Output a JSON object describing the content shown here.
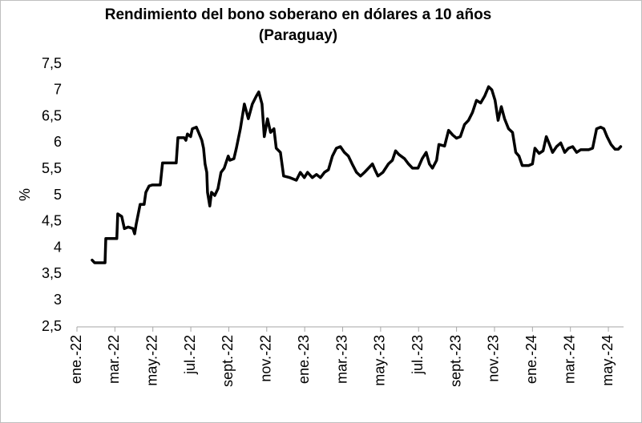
{
  "chart_data": {
    "type": "line",
    "title": "Rendimiento del bono soberano en dólares a 10 años",
    "subtitle": "(Paraguay)",
    "y_label": "%",
    "color": "#000000",
    "grid": false,
    "xlim": [
      0,
      28.8
    ],
    "xticks": [
      {
        "value": 0,
        "label": "ene.-22"
      },
      {
        "value": 2,
        "label": "mar.-22"
      },
      {
        "value": 4,
        "label": "may.-22"
      },
      {
        "value": 6,
        "label": "jul.-22"
      },
      {
        "value": 8,
        "label": "sept.-22"
      },
      {
        "value": 10,
        "label": "nov.-22"
      },
      {
        "value": 12,
        "label": "ene.-23"
      },
      {
        "value": 14,
        "label": "mar.-23"
      },
      {
        "value": 16,
        "label": "may.-23"
      },
      {
        "value": 18,
        "label": "jul.-23"
      },
      {
        "value": 20,
        "label": "sept.-23"
      },
      {
        "value": 22,
        "label": "nov.-23"
      },
      {
        "value": 24,
        "label": "ene.-24"
      },
      {
        "value": 26,
        "label": "mar.-24"
      },
      {
        "value": 28,
        "label": "may.-24"
      }
    ],
    "ylim": [
      2.5,
      7.5
    ],
    "yticks": [
      {
        "value": 2.5,
        "label": "2,5"
      },
      3,
      {
        "value": 3.5,
        "label": "3,5"
      },
      4,
      {
        "value": 4.5,
        "label": "4,5"
      },
      5,
      {
        "value": 5.5,
        "label": "5,5"
      },
      6,
      {
        "value": 6.5,
        "label": "6,5"
      },
      7,
      {
        "value": 7.5,
        "label": "7,5"
      }
    ],
    "x": [
      0.8,
      0.93,
      1.48,
      1.52,
      2.1,
      2.15,
      2.36,
      2.5,
      2.7,
      2.95,
      3.04,
      3.12,
      3.33,
      3.54,
      3.63,
      3.8,
      3.97,
      4.39,
      4.51,
      5.23,
      5.32,
      5.65,
      5.74,
      5.82,
      5.99,
      6.08,
      6.29,
      6.41,
      6.58,
      6.67,
      6.75,
      6.84,
      6.88,
      7.0,
      7.09,
      7.26,
      7.43,
      7.59,
      7.76,
      7.97,
      8.06,
      8.27,
      8.4,
      8.61,
      8.82,
      9.03,
      9.24,
      9.45,
      9.58,
      9.75,
      9.87,
      10.04,
      10.2,
      10.38,
      10.5,
      10.72,
      10.89,
      11.22,
      11.56,
      11.77,
      11.98,
      12.15,
      12.4,
      12.62,
      12.83,
      13.04,
      13.25,
      13.46,
      13.67,
      13.88,
      14.09,
      14.3,
      14.5,
      14.73,
      14.94,
      15.15,
      15.36,
      15.57,
      15.7,
      15.86,
      16.12,
      16.41,
      16.62,
      16.79,
      16.96,
      17.26,
      17.47,
      17.68,
      17.97,
      18.19,
      18.4,
      18.57,
      18.73,
      18.95,
      19.07,
      19.37,
      19.58,
      19.8,
      20.0,
      20.2,
      20.42,
      20.63,
      20.84,
      21.05,
      21.27,
      21.48,
      21.69,
      21.86,
      22.03,
      22.19,
      22.36,
      22.53,
      22.74,
      22.95,
      23.12,
      23.29,
      23.46,
      23.8,
      24.0,
      24.13,
      24.35,
      24.56,
      24.73,
      24.9,
      25.06,
      25.27,
      25.49,
      25.7,
      25.9,
      26.12,
      26.33,
      26.54,
      26.96,
      27.17,
      27.38,
      27.59,
      27.76,
      27.93,
      28.14,
      28.35,
      28.52,
      28.65
    ],
    "values": [
      3.77,
      3.72,
      3.72,
      4.18,
      4.18,
      4.65,
      4.6,
      4.37,
      4.4,
      4.37,
      4.27,
      4.45,
      4.83,
      4.83,
      5.06,
      5.18,
      5.2,
      5.2,
      5.62,
      5.62,
      6.1,
      6.1,
      6.05,
      6.17,
      6.12,
      6.27,
      6.3,
      6.2,
      6.05,
      5.9,
      5.6,
      5.44,
      5.06,
      4.8,
      5.06,
      5.0,
      5.13,
      5.44,
      5.52,
      5.75,
      5.67,
      5.7,
      5.9,
      6.27,
      6.74,
      6.46,
      6.74,
      6.89,
      6.97,
      6.74,
      6.12,
      6.46,
      6.2,
      6.27,
      5.9,
      5.82,
      5.37,
      5.34,
      5.29,
      5.44,
      5.34,
      5.44,
      5.34,
      5.4,
      5.34,
      5.44,
      5.49,
      5.75,
      5.9,
      5.93,
      5.82,
      5.75,
      5.6,
      5.44,
      5.37,
      5.44,
      5.52,
      5.6,
      5.49,
      5.37,
      5.44,
      5.6,
      5.67,
      5.85,
      5.78,
      5.7,
      5.6,
      5.52,
      5.52,
      5.7,
      5.82,
      5.6,
      5.52,
      5.67,
      5.97,
      5.94,
      6.24,
      6.15,
      6.09,
      6.12,
      6.35,
      6.43,
      6.58,
      6.81,
      6.76,
      6.89,
      7.07,
      7.01,
      6.81,
      6.43,
      6.69,
      6.46,
      6.27,
      6.2,
      5.82,
      5.75,
      5.57,
      5.57,
      5.6,
      5.9,
      5.8,
      5.85,
      6.12,
      5.97,
      5.82,
      5.93,
      6.0,
      5.82,
      5.9,
      5.93,
      5.82,
      5.87,
      5.87,
      5.9,
      6.27,
      6.3,
      6.27,
      6.12,
      5.97,
      5.88,
      5.88,
      5.93
    ]
  }
}
